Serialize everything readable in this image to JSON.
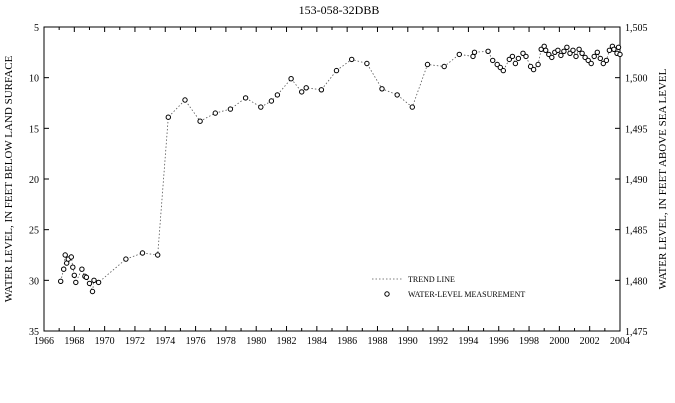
{
  "chart_data": {
    "type": "scatter",
    "title": "153-058-32DBB",
    "ylabel_left": "WATER LEVEL, IN FEET BELOW LAND SURFACE",
    "ylabel_right": "WATER LEVEL, IN FEET ABOVE SEA LEVEL",
    "xlim": [
      1966,
      2004
    ],
    "ylim_left": [
      5,
      35
    ],
    "left_axis_inverted": true,
    "ylim_right": [
      1475,
      1505
    ],
    "x_ticks": [
      1966,
      1968,
      1970,
      1972,
      1974,
      1976,
      1978,
      1980,
      1982,
      1984,
      1986,
      1988,
      1990,
      1992,
      1994,
      1996,
      1998,
      2000,
      2002,
      2004
    ],
    "y_ticks_left": [
      5,
      10,
      15,
      20,
      25,
      30,
      35
    ],
    "y_ticks_right": [
      1505,
      1500,
      1495,
      1490,
      1485,
      1480,
      1475
    ],
    "y_tick_labels_right": [
      "1,505",
      "1,500",
      "1,495",
      "1,490",
      "1,485",
      "1,480",
      "1,475"
    ],
    "legend": {
      "placement": "bottom-right",
      "trend_label": "TREND LINE",
      "points_label": "WATER-LEVEL MEASUREMENT"
    },
    "series": [
      {
        "name": "WATER-LEVEL MEASUREMENT",
        "x": [
          1967.1,
          1967.3,
          1967.4,
          1967.5,
          1967.6,
          1967.8,
          1967.9,
          1968.0,
          1968.1,
          1968.5,
          1968.7,
          1968.8,
          1969.0,
          1969.2,
          1969.3,
          1969.6,
          1971.4,
          1972.5,
          1973.5,
          1974.2,
          1975.3,
          1976.3,
          1977.3,
          1978.3,
          1979.3,
          1980.3,
          1981.0,
          1981.4,
          1982.3,
          1983.0,
          1983.3,
          1984.3,
          1985.3,
          1986.3,
          1987.3,
          1988.3,
          1989.3,
          1990.3,
          1991.3,
          1992.4,
          1993.4,
          1994.3,
          1994.4,
          1995.3,
          1995.6,
          1995.9,
          1996.1,
          1996.3,
          1996.7,
          1996.9,
          1997.1,
          1997.3,
          1997.6,
          1997.8,
          1998.1,
          1998.3,
          1998.6,
          1998.8,
          1999.0,
          1999.1,
          1999.3,
          1999.5,
          1999.7,
          1999.9,
          2000.1,
          2000.3,
          2000.5,
          2000.7,
          2000.9,
          2001.1,
          2001.3,
          2001.5,
          2001.7,
          2001.9,
          2002.1,
          2002.3,
          2002.5,
          2002.7,
          2002.9,
          2003.1,
          2003.3,
          2003.5,
          2003.6,
          2003.8,
          2003.9,
          2004.0
        ],
        "y": [
          30.1,
          28.9,
          27.5,
          28.3,
          27.9,
          27.7,
          28.7,
          29.5,
          30.2,
          28.9,
          29.6,
          29.7,
          30.3,
          31.1,
          30.0,
          30.2,
          27.9,
          27.3,
          27.5,
          13.9,
          12.2,
          14.3,
          13.5,
          13.1,
          12.0,
          12.9,
          12.3,
          11.7,
          10.1,
          11.4,
          11.0,
          11.2,
          9.3,
          8.2,
          8.6,
          11.1,
          11.7,
          12.9,
          8.7,
          8.9,
          7.7,
          7.9,
          7.5,
          7.4,
          8.3,
          8.7,
          9.0,
          9.3,
          8.2,
          7.9,
          8.6,
          8.1,
          7.6,
          7.9,
          8.9,
          9.2,
          8.7,
          7.2,
          6.9,
          7.3,
          7.7,
          8.0,
          7.5,
          7.3,
          7.8,
          7.4,
          7.0,
          7.6,
          7.3,
          7.9,
          7.2,
          7.6,
          8.0,
          8.3,
          8.6,
          7.9,
          7.5,
          8.1,
          8.6,
          8.3,
          7.3,
          6.9,
          7.2,
          7.6,
          7.0,
          7.7
        ]
      }
    ]
  }
}
